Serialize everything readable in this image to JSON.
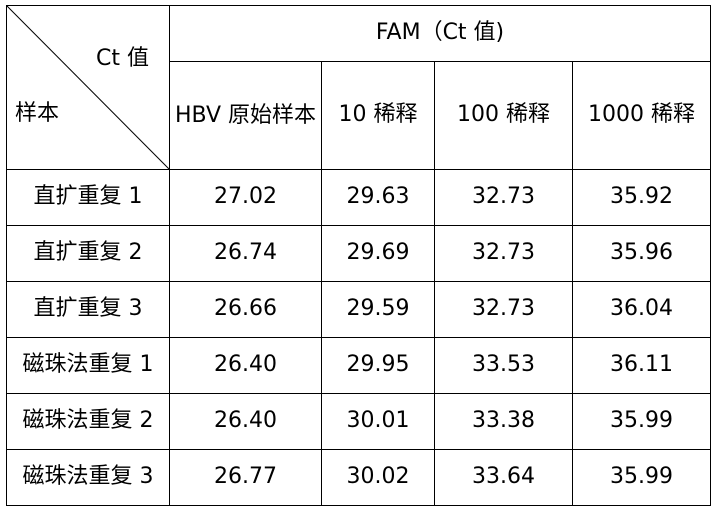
{
  "table": {
    "corner_top": "Ct 值",
    "corner_bottom": "样本",
    "group_header": "FAM（Ct 值)",
    "sub_headers": [
      "HBV 原始样本",
      "10 稀释",
      "100 稀释",
      "1000 稀释"
    ],
    "rows": [
      {
        "label": "直扩重复 1",
        "values": [
          "27.02",
          "29.63",
          "32.73",
          "35.92"
        ]
      },
      {
        "label": "直扩重复 2",
        "values": [
          "26.74",
          "29.69",
          "32.73",
          "35.96"
        ]
      },
      {
        "label": "直扩重复 3",
        "values": [
          "26.66",
          "29.59",
          "32.73",
          "36.04"
        ]
      },
      {
        "label": "磁珠法重复 1",
        "values": [
          "26.40",
          "29.95",
          "33.53",
          "36.11"
        ]
      },
      {
        "label": "磁珠法重复 2",
        "values": [
          "26.40",
          "30.01",
          "33.38",
          "35.99"
        ]
      },
      {
        "label": "磁珠法重复 3",
        "values": [
          "26.77",
          "30.02",
          "33.64",
          "35.99"
        ]
      }
    ]
  }
}
